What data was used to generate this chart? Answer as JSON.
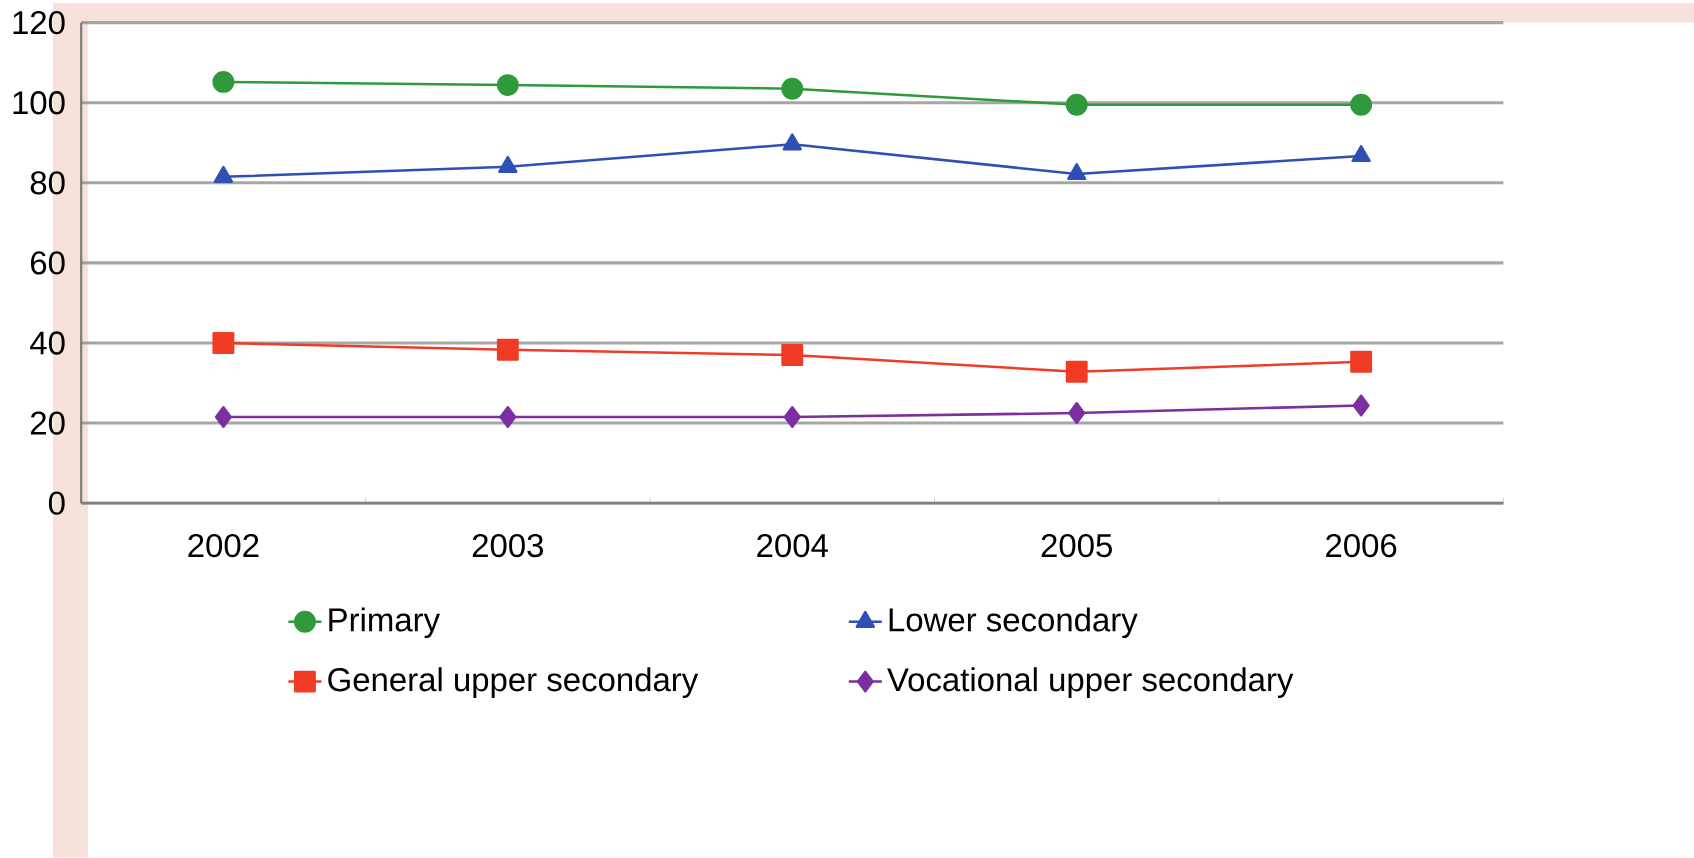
{
  "chart_data": {
    "type": "line",
    "categories": [
      "2002",
      "2003",
      "2004",
      "2005",
      "2006"
    ],
    "series": [
      {
        "name": "Primary",
        "color": "#2e9a3c",
        "marker": "circle",
        "values": [
          105.2,
          104.4,
          103.5,
          99.5,
          99.5
        ]
      },
      {
        "name": "Lower secondary",
        "color": "#2f4fb5",
        "marker": "triangle",
        "values": [
          81.5,
          84,
          89.6,
          82.2,
          86.7
        ]
      },
      {
        "name": "General upper secondary",
        "color": "#f03c24",
        "marker": "square",
        "values": [
          40,
          38.3,
          37,
          32.8,
          35.3
        ]
      },
      {
        "name": "Vocational upper secondary",
        "color": "#7b2fa0",
        "marker": "diamond",
        "values": [
          21.5,
          21.5,
          21.5,
          22.5,
          24.4
        ]
      }
    ],
    "ylim": [
      0,
      120
    ],
    "yticks": [
      0,
      20,
      40,
      60,
      80,
      100,
      120
    ],
    "grid": "y",
    "legend": "bottom",
    "line_style": "solid"
  }
}
